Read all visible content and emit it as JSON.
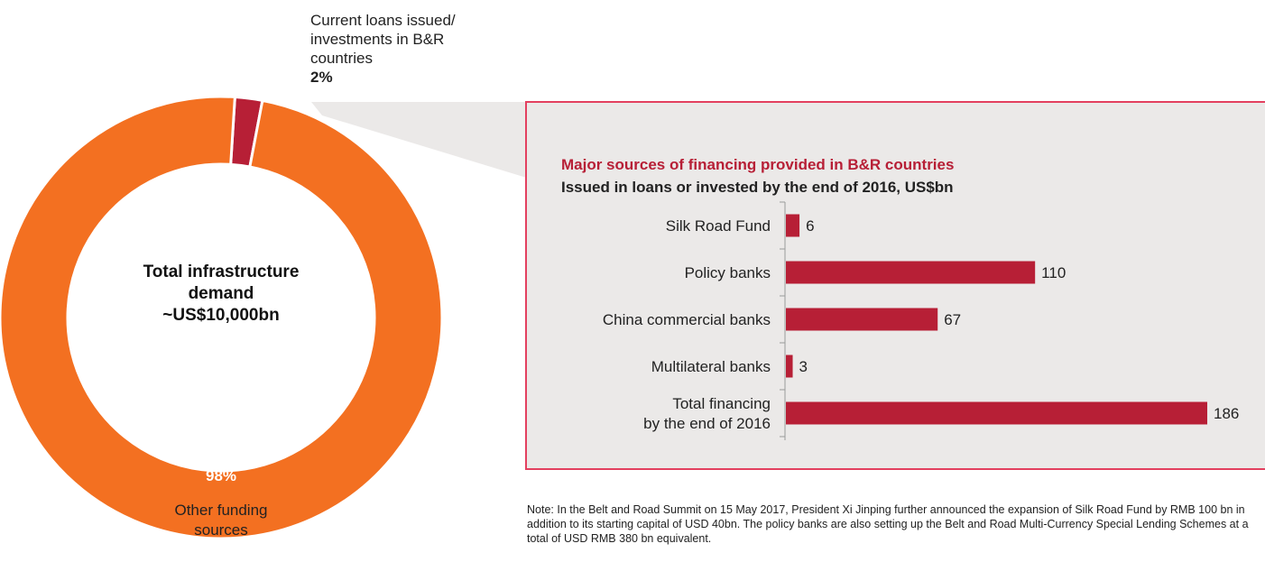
{
  "donut": {
    "slices": [
      {
        "label": "Current loans issued/ investments in B&R countries",
        "label_lines": [
          "Current loans issued/",
          "investments in B&R",
          "countries"
        ],
        "percent_text": "2%",
        "value": 2,
        "color": "#b71f36"
      },
      {
        "label": "Other funding sources",
        "label_lines": [
          "Other funding",
          "sources"
        ],
        "percent_text": "98%",
        "value": 98,
        "color": "#f37021"
      }
    ],
    "center_lines": [
      "Total infrastructure",
      "demand",
      "~US$10,000bn"
    ]
  },
  "panel": {
    "title": "Major sources of financing provided in B&R countries",
    "subtitle": "Issued in loans or invested by the end of 2016, US$bn",
    "border_color": "#e3405f",
    "background": "#ebe9e8"
  },
  "chart_data": [
    {
      "type": "pie",
      "categories": [
        "Current loans issued/ investments in B&R countries",
        "Other funding sources"
      ],
      "values": [
        2,
        98
      ],
      "title": "Total infrastructure demand ~US$10,000bn"
    },
    {
      "type": "bar",
      "orientation": "horizontal",
      "title": "Major sources of financing provided in B&R countries",
      "subtitle": "Issued in loans or invested by the end of 2016, US$bn",
      "categories": [
        "Silk Road Fund",
        "Policy banks",
        "China commercial banks",
        "Multilateral banks",
        "Total financing by the end of 2016"
      ],
      "category_lines": [
        [
          "Silk Road Fund"
        ],
        [
          "Policy banks"
        ],
        [
          "China commercial banks"
        ],
        [
          "Multilateral banks"
        ],
        [
          "Total financing",
          "by the end of 2016"
        ]
      ],
      "values": [
        6,
        110,
        67,
        3,
        186
      ],
      "xlim": [
        0,
        186
      ],
      "grid": false,
      "bar_color": "#b71f36"
    }
  ],
  "note": "Note: In the Belt and Road Summit on 15 May 2017, President Xi Jinping further announced the expansion of Silk Road Fund by RMB 100 bn in addition to its starting capital of USD 40bn. The policy banks are also setting up the Belt and Road Multi-Currency Special Lending Schemes at a total of USD RMB 380 bn equivalent."
}
